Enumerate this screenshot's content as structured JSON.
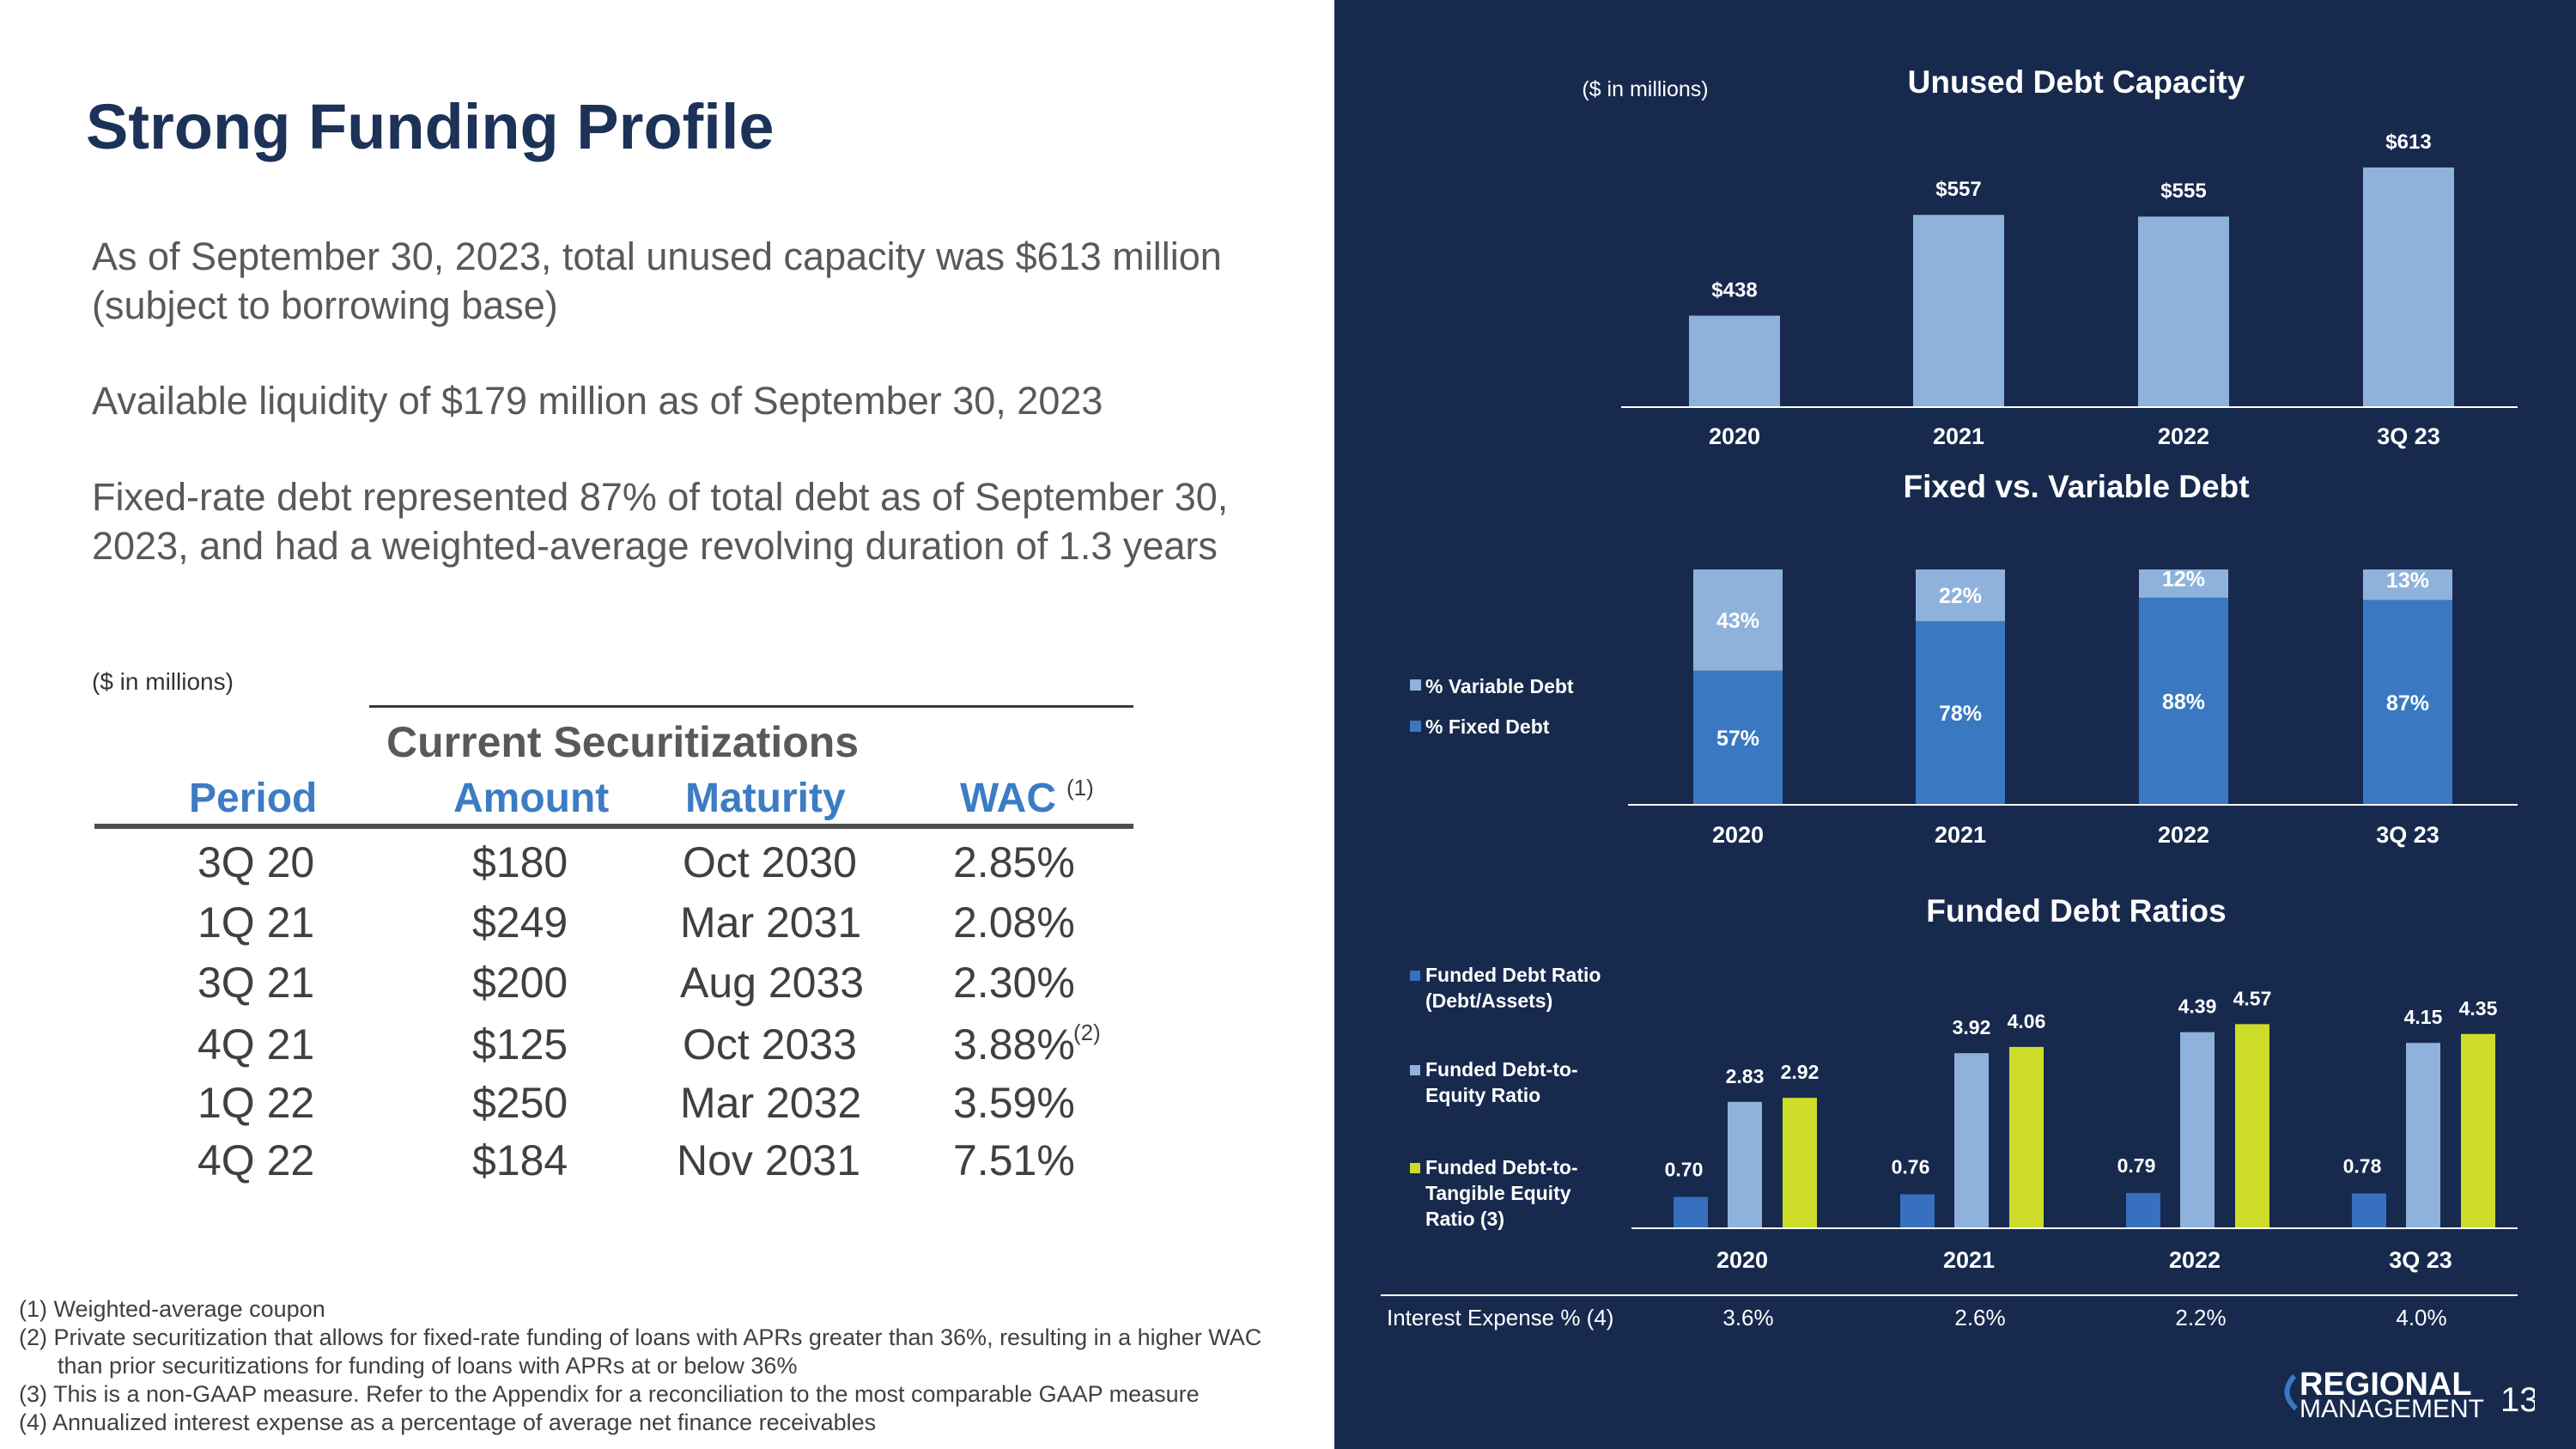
{
  "title": "Strong Funding Profile",
  "bullets": [
    "As of September 30, 2023, total unused capacity was $613 million (subject to borrowing base)",
    "Available liquidity of $179 million as of September 30, 2023",
    "Fixed-rate debt represented 87% of total debt as of September 30, 2023, and had a weighted-average revolving duration of 1.3 years"
  ],
  "securitizations": {
    "units": "($ in millions)",
    "title": "Current Securitizations",
    "headers": [
      "Period",
      "Amount",
      "Maturity",
      "WAC"
    ],
    "wac_note": "(1)",
    "rows": [
      {
        "period": "3Q 20",
        "amount": "$180",
        "maturity": "Oct 2030",
        "wac": "2.85%",
        "note": ""
      },
      {
        "period": "1Q 21",
        "amount": "$249",
        "maturity": "Mar 2031",
        "wac": "2.08%",
        "note": ""
      },
      {
        "period": "3Q 21",
        "amount": "$200",
        "maturity": "Aug 2033",
        "wac": "2.30%",
        "note": ""
      },
      {
        "period": "4Q 21",
        "amount": "$125",
        "maturity": "Oct 2033",
        "wac": "3.88%",
        "note": "(2)"
      },
      {
        "period": "1Q 22",
        "amount": "$250",
        "maturity": "Mar 2032",
        "wac": "3.59%",
        "note": ""
      },
      {
        "period": "4Q 22",
        "amount": "$184",
        "maturity": "Nov 2031",
        "wac": "7.51%",
        "note": ""
      }
    ]
  },
  "footnotes": [
    "(1) Weighted-average coupon",
    "(2) Private securitization that allows for fixed-rate funding of loans with APRs greater than 36%, resulting in a higher WAC",
    "than prior securitizations for funding of loans with APRs at or below 36%",
    "(3) This is a non-GAAP measure. Refer to the Appendix for a reconciliation to the most comparable GAAP measure",
    "(4) Annualized interest expense as a percentage of average net finance receivables"
  ],
  "right_units": "($ in millions)",
  "colors": {
    "panel": "#172a4e",
    "light_blue": "#8fb2dc",
    "mid_blue": "#3a78c2",
    "lime": "#cddc29",
    "small_blue": "#3770be"
  },
  "chart_data": [
    {
      "type": "bar",
      "title": "Unused Debt Capacity",
      "categories": [
        "2020",
        "2021",
        "2022",
        "3Q 23"
      ],
      "values": [
        438,
        557,
        555,
        613
      ],
      "labels": [
        "$438",
        "$557",
        "$555",
        "$613"
      ],
      "ylim": [
        330,
        613
      ]
    },
    {
      "type": "bar",
      "stacked": true,
      "title": "Fixed vs. Variable Debt",
      "categories": [
        "2020",
        "2021",
        "2022",
        "3Q 23"
      ],
      "legend": [
        "% Variable Debt",
        "% Fixed Debt"
      ],
      "series": [
        {
          "name": "% Fixed Debt",
          "values": [
            57,
            78,
            88,
            87
          ]
        },
        {
          "name": "% Variable Debt",
          "values": [
            43,
            22,
            12,
            13
          ]
        }
      ]
    },
    {
      "type": "bar",
      "title": "Funded Debt Ratios",
      "categories": [
        "2020",
        "2021",
        "2022",
        "3Q 23"
      ],
      "legend": [
        "Funded Debt Ratio (Debt/Assets)",
        "Funded Debt-to-Equity Ratio",
        "Funded Debt-to-Tangible Equity Ratio (3)"
      ],
      "series": [
        {
          "name": "Funded Debt Ratio (Debt/Assets)",
          "values": [
            0.7,
            0.76,
            0.79,
            0.78
          ],
          "labels": [
            "0.70",
            "0.76",
            "0.79",
            "0.78"
          ]
        },
        {
          "name": "Funded Debt-to-Equity Ratio",
          "values": [
            2.83,
            3.92,
            4.39,
            4.15
          ],
          "labels": [
            "2.83",
            "3.92",
            "4.39",
            "4.15"
          ]
        },
        {
          "name": "Funded Debt-to-Tangible Equity Ratio (3)",
          "values": [
            2.92,
            4.06,
            4.57,
            4.35
          ],
          "labels": [
            "2.92",
            "4.06",
            "4.57",
            "4.35"
          ]
        }
      ]
    }
  ],
  "interest_expense": {
    "label": "Interest Expense % (4)",
    "values": [
      "3.6%",
      "2.6%",
      "2.2%",
      "4.0%"
    ]
  },
  "logo": {
    "line1": "REGIONAL",
    "line2": "MANAGEMENT"
  },
  "page_number": "13"
}
